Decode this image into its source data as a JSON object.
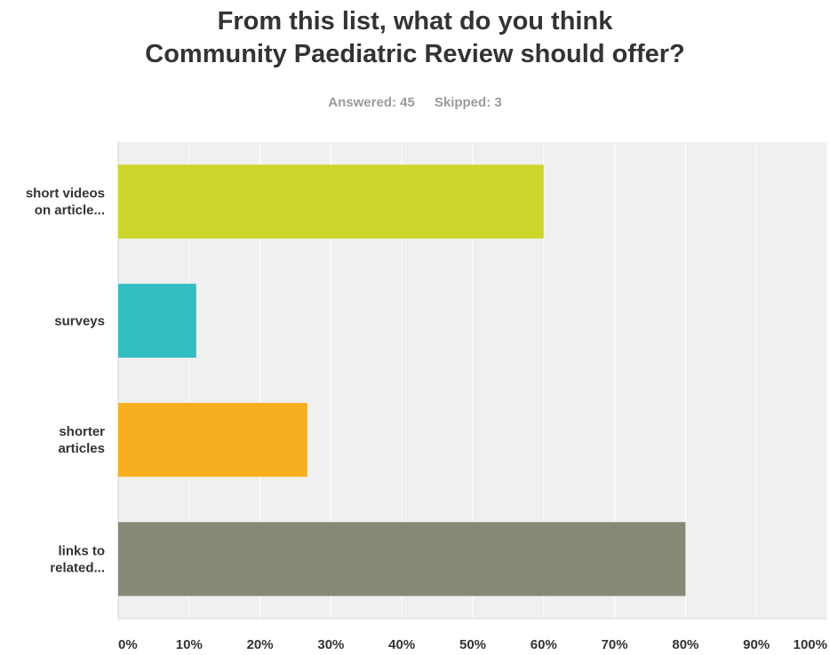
{
  "title_lines": [
    "From this list, what do you think",
    "Community Paediatric Review should offer?"
  ],
  "stats": {
    "answered_label": "Answered: 45",
    "skipped_label": "Skipped: 3"
  },
  "chart_data": {
    "type": "bar",
    "orientation": "horizontal",
    "title": "From this list, what do you think Community Paediatric Review should offer?",
    "categories": [
      [
        "short videos",
        "on article..."
      ],
      [
        "surveys"
      ],
      [
        "shorter",
        "articles"
      ],
      [
        "links to",
        "related..."
      ]
    ],
    "values": [
      60,
      11,
      26.67,
      80
    ],
    "colors": [
      "#ccd62a",
      "#33bec1",
      "#f7ae1f",
      "#878977"
    ],
    "xlim": [
      0,
      100
    ],
    "x_ticks": [
      0,
      10,
      20,
      30,
      40,
      50,
      60,
      70,
      80,
      90,
      100
    ],
    "x_tick_labels": [
      "0%",
      "10%",
      "20%",
      "30%",
      "40%",
      "50%",
      "60%",
      "70%",
      "80%",
      "90%",
      "100%"
    ],
    "grid": true,
    "legend": "none"
  }
}
